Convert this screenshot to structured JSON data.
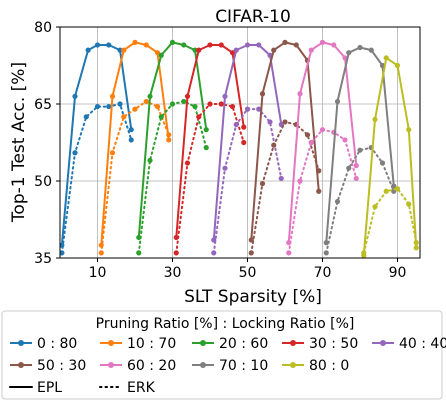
{
  "chart_data": {
    "type": "line",
    "title": "CIFAR-10",
    "xlabel": "SLT Sparsity [%]",
    "ylabel": "Top-1 Test Acc. [%]",
    "xlim": [
      0,
      96
    ],
    "ylim": [
      35,
      80
    ],
    "xticks": [
      "10",
      "30",
      "50",
      "70",
      "90"
    ],
    "xtick_values": [
      10,
      30,
      50,
      70,
      90
    ],
    "yticks": [
      "35",
      "50",
      "65",
      "80"
    ],
    "ytick_values": [
      35,
      50,
      65,
      80
    ],
    "grid": true,
    "legend_title": "Pruning Ratio [%] : Locking Ratio [%]",
    "legend_position": "bottom",
    "style_legend": [
      {
        "label": "EPL",
        "dash": "solid"
      },
      {
        "label": "ERK",
        "dash": "dotted"
      }
    ],
    "series": [
      {
        "name": "0 : 80",
        "color": "#1f77b4",
        "epl": [
          [
            0.5,
            37.5
          ],
          [
            4,
            66.5
          ],
          [
            7.5,
            75.5
          ],
          [
            10,
            76.5
          ],
          [
            13,
            76.5
          ],
          [
            16,
            75.5
          ],
          [
            19,
            60
          ]
        ],
        "erk": [
          [
            0.5,
            36
          ],
          [
            4,
            55.5
          ],
          [
            7,
            62.5
          ],
          [
            10,
            64.5
          ],
          [
            13,
            64.5
          ],
          [
            16,
            65
          ],
          [
            19,
            58
          ]
        ]
      },
      {
        "name": "10 : 70",
        "color": "#ff7f0e",
        "epl": [
          [
            11,
            37.5
          ],
          [
            14,
            66.5
          ],
          [
            17,
            75.5
          ],
          [
            20,
            77
          ],
          [
            23,
            76.5
          ],
          [
            26,
            75
          ],
          [
            29,
            58
          ]
        ],
        "erk": [
          [
            11,
            36
          ],
          [
            14,
            55.5
          ],
          [
            17,
            62.5
          ],
          [
            20,
            64
          ],
          [
            23,
            65.5
          ],
          [
            26,
            64.5
          ],
          [
            29,
            59
          ]
        ]
      },
      {
        "name": "20 : 60",
        "color": "#2ca02c",
        "epl": [
          [
            21,
            39
          ],
          [
            24,
            66.5
          ],
          [
            27,
            74.5
          ],
          [
            30,
            77
          ],
          [
            33,
            76.5
          ],
          [
            36,
            75.5
          ],
          [
            39,
            60
          ]
        ],
        "erk": [
          [
            21,
            36
          ],
          [
            24,
            54
          ],
          [
            27,
            62.5
          ],
          [
            30,
            65
          ],
          [
            33,
            65.5
          ],
          [
            36,
            64.5
          ],
          [
            39,
            56.5
          ]
        ]
      },
      {
        "name": "30 : 50",
        "color": "#d62728",
        "epl": [
          [
            31,
            39
          ],
          [
            34,
            66.5
          ],
          [
            37,
            75.5
          ],
          [
            40,
            76.5
          ],
          [
            43,
            76.5
          ],
          [
            46,
            75
          ],
          [
            49,
            60.5
          ]
        ],
        "erk": [
          [
            31,
            36
          ],
          [
            34,
            53.5
          ],
          [
            37,
            62.5
          ],
          [
            40,
            65
          ],
          [
            43,
            65
          ],
          [
            46,
            64.5
          ],
          [
            49,
            57.5
          ]
        ]
      },
      {
        "name": "40 : 40",
        "color": "#9467bd",
        "epl": [
          [
            41,
            38.5
          ],
          [
            44,
            66.5
          ],
          [
            47,
            75.5
          ],
          [
            50,
            76.5
          ],
          [
            53,
            76.5
          ],
          [
            56,
            74.5
          ],
          [
            59,
            61
          ]
        ],
        "erk": [
          [
            41,
            36
          ],
          [
            44,
            52.5
          ],
          [
            47,
            61
          ],
          [
            50,
            64
          ],
          [
            53,
            64
          ],
          [
            56,
            61.5
          ],
          [
            59,
            50.5
          ]
        ]
      },
      {
        "name": "50 : 30",
        "color": "#8c564b",
        "epl": [
          [
            51,
            38.5
          ],
          [
            54,
            67
          ],
          [
            57,
            75.5
          ],
          [
            60,
            77
          ],
          [
            63,
            76.5
          ],
          [
            66,
            73.5
          ],
          [
            69,
            48
          ]
        ],
        "erk": [
          [
            51,
            36
          ],
          [
            54,
            49.5
          ],
          [
            57,
            57
          ],
          [
            60,
            61.5
          ],
          [
            63,
            61
          ],
          [
            66,
            59
          ],
          [
            69,
            52
          ]
        ]
      },
      {
        "name": "60 : 20",
        "color": "#e377c2",
        "epl": [
          [
            61,
            38
          ],
          [
            64,
            67
          ],
          [
            67,
            75.5
          ],
          [
            70,
            77
          ],
          [
            73,
            76.5
          ],
          [
            76,
            74
          ],
          [
            79,
            53
          ]
        ],
        "erk": [
          [
            61,
            36
          ],
          [
            64,
            50
          ],
          [
            67,
            57.5
          ],
          [
            70,
            60
          ],
          [
            73,
            59.5
          ],
          [
            76,
            58
          ],
          [
            79,
            50.5
          ]
        ]
      },
      {
        "name": "70 : 10",
        "color": "#7f7f7f",
        "epl": [
          [
            71,
            38
          ],
          [
            74,
            65.5
          ],
          [
            77,
            75
          ],
          [
            80,
            76
          ],
          [
            83,
            75.5
          ],
          [
            86,
            72.5
          ],
          [
            89,
            49
          ]
        ],
        "erk": [
          [
            71,
            36
          ],
          [
            74,
            46
          ],
          [
            77,
            52.5
          ],
          [
            80,
            56
          ],
          [
            83,
            56.5
          ],
          [
            86,
            53.5
          ],
          [
            89,
            48
          ]
        ]
      },
      {
        "name": "80 : 0",
        "color": "#bcbd22",
        "epl": [
          [
            81,
            35.5
          ],
          [
            84,
            62
          ],
          [
            87,
            74
          ],
          [
            90,
            72.5
          ],
          [
            93,
            60
          ],
          [
            95,
            37
          ]
        ],
        "erk": [
          [
            81,
            36
          ],
          [
            84,
            45
          ],
          [
            87,
            48
          ],
          [
            90,
            48.5
          ],
          [
            93,
            45.5
          ],
          [
            95,
            38
          ]
        ]
      }
    ]
  }
}
